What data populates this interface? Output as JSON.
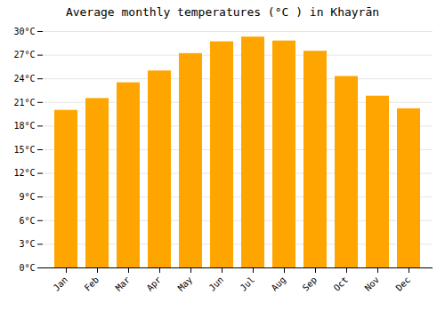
{
  "chart_data": {
    "type": "bar",
    "title": "Average monthly temperatures (°C ) in Khayrān",
    "categories": [
      "Jan",
      "Feb",
      "Mar",
      "Apr",
      "May",
      "Jun",
      "Jul",
      "Aug",
      "Sep",
      "Oct",
      "Nov",
      "Dec"
    ],
    "values": [
      20.0,
      21.5,
      23.5,
      25.0,
      27.2,
      28.7,
      29.3,
      28.8,
      27.5,
      24.3,
      21.8,
      20.2
    ],
    "color": "#FFA500",
    "ylim": [
      0,
      30
    ],
    "yticks": [
      {
        "value": 0,
        "label": "0°C"
      },
      {
        "value": 3,
        "label": "3°C"
      },
      {
        "value": 6,
        "label": "6°C"
      },
      {
        "value": 9,
        "label": "9°C"
      },
      {
        "value": 12,
        "label": "12°C"
      },
      {
        "value": 15,
        "label": "15°C"
      },
      {
        "value": 18,
        "label": "18°C"
      },
      {
        "value": 21,
        "label": "21°C"
      },
      {
        "value": 24,
        "label": "24°C"
      },
      {
        "value": 27,
        "label": "27°C"
      },
      {
        "value": 30,
        "label": "30°C"
      }
    ],
    "grid": true
  }
}
